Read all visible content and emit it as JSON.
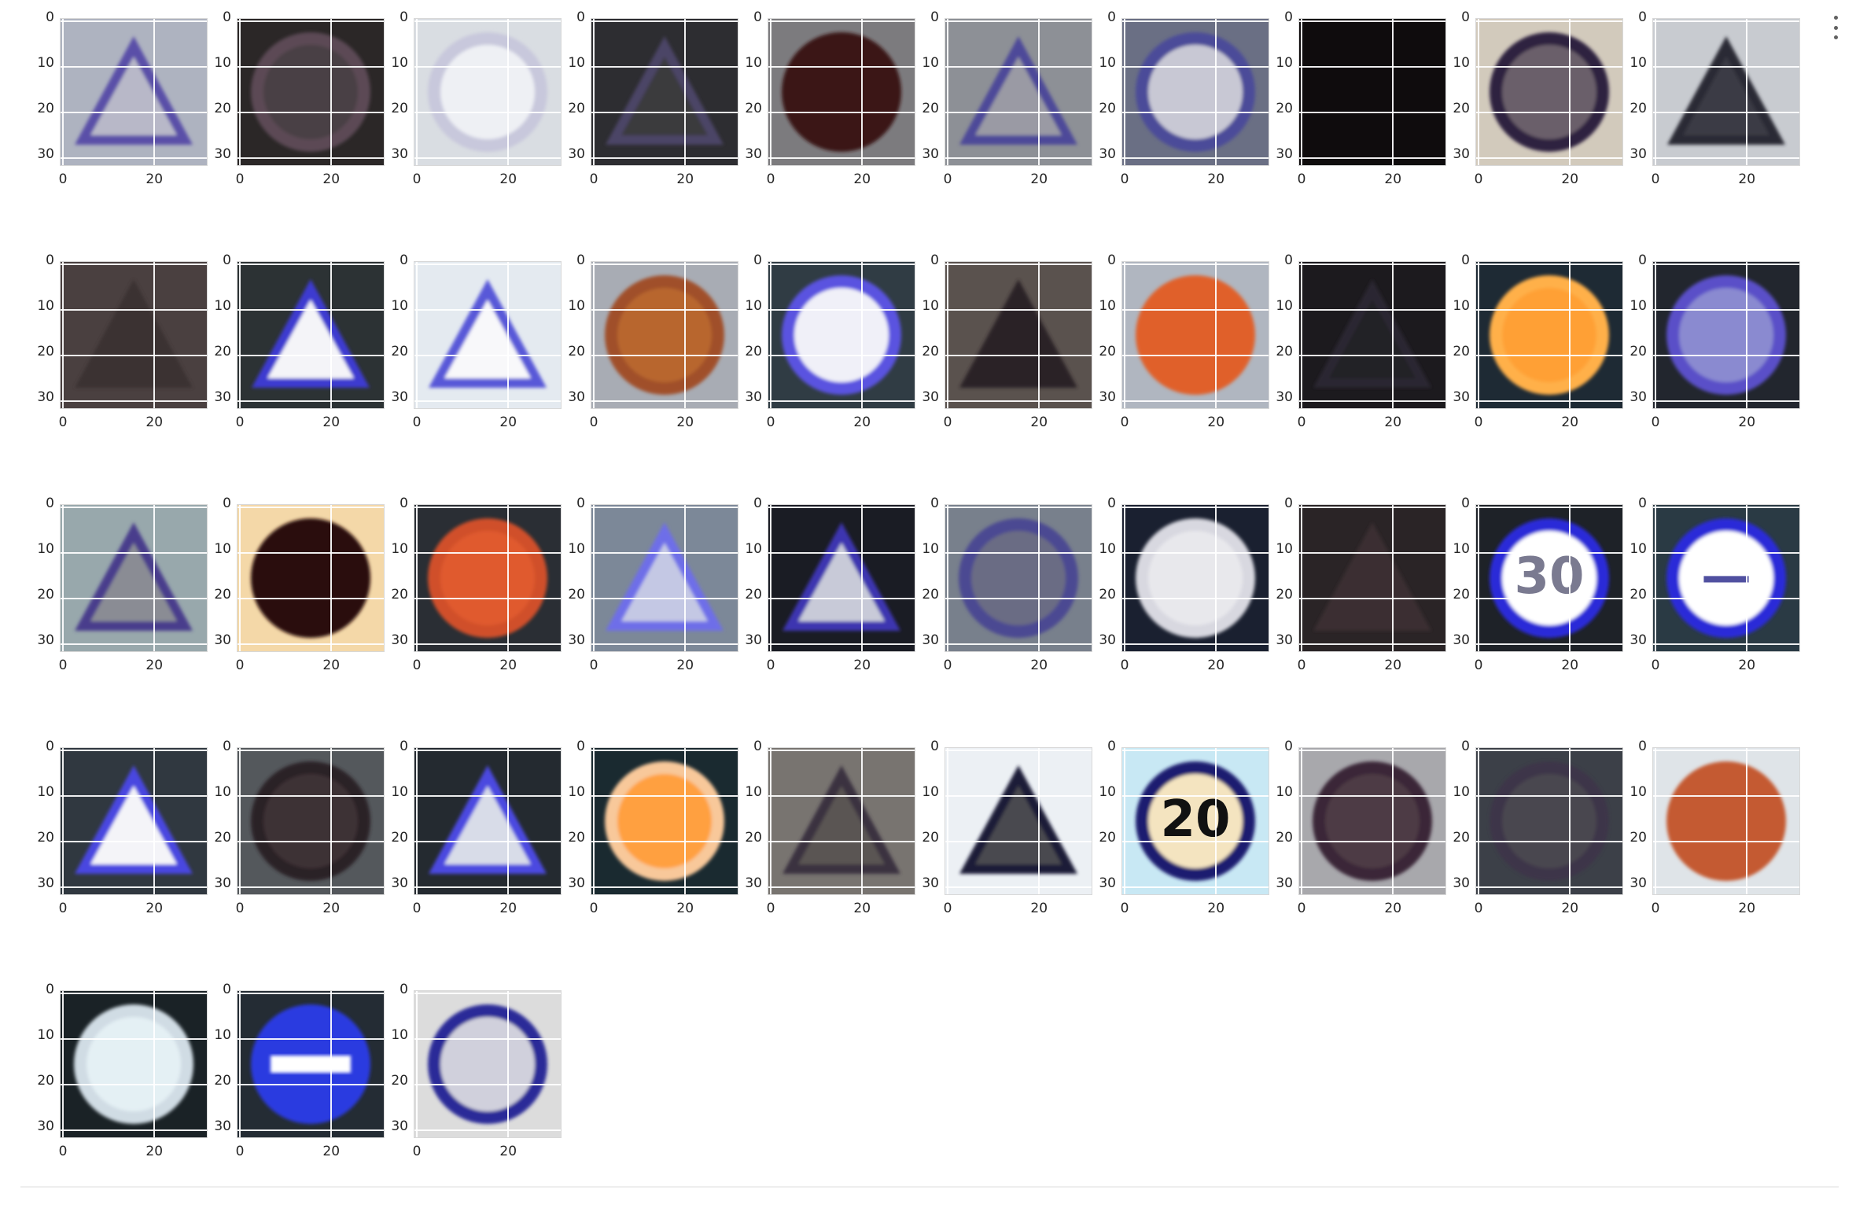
{
  "figure": {
    "ytick_labels": [
      "0",
      "10",
      "20",
      "30"
    ],
    "ytick_values": [
      0,
      10,
      20,
      30
    ],
    "xtick_labels": [
      "0",
      "20"
    ],
    "xtick_values": [
      0,
      20
    ],
    "pixel_extent": 32
  },
  "images": [
    {
      "shape": "triangle",
      "bg": "#aeb3c0",
      "fill": "#b8b8c8",
      "ring": "#5a4fa8",
      "symbol": "",
      "sym_color": "#555"
    },
    {
      "shape": "circle",
      "bg": "#2b2727",
      "fill": "#4a3f44",
      "ring": "#5b4a55",
      "symbol": "",
      "sym_color": "#555"
    },
    {
      "shape": "circle",
      "bg": "#d9dde2",
      "fill": "#eef0f4",
      "ring": "#c8c8dc",
      "symbol": "",
      "sym_color": "#5a8a5a"
    },
    {
      "shape": "triangle",
      "bg": "#2d2d31",
      "fill": "#3a3a3e",
      "ring": "#4c4566",
      "symbol": "",
      "sym_color": "#444"
    },
    {
      "shape": "circle",
      "bg": "#7c7b7e",
      "fill": "#3a1716",
      "ring": "#3a1716",
      "symbol": "",
      "sym_color": "#3a1716"
    },
    {
      "shape": "triangle",
      "bg": "#8d9096",
      "fill": "#9a9aa4",
      "ring": "#4e4a99",
      "symbol": "",
      "sym_color": "#555"
    },
    {
      "shape": "circle",
      "bg": "#6a6f84",
      "fill": "#c8c8d4",
      "ring": "#4b4c99",
      "symbol": "",
      "sym_color": "#444"
    },
    {
      "shape": "none",
      "bg": "#0f0c0d",
      "fill": "#141012",
      "ring": "#141012",
      "symbol": "",
      "sym_color": "#141012"
    },
    {
      "shape": "circle",
      "bg": "#d2cabc",
      "fill": "#6a5f6a",
      "ring": "#2e2140",
      "symbol": "",
      "sym_color": "#333"
    },
    {
      "shape": "triangle",
      "bg": "#c8cbd0",
      "fill": "#3a3a44",
      "ring": "#2a2a36",
      "symbol": "",
      "sym_color": "#333"
    },
    {
      "shape": "triangle",
      "bg": "#4a4040",
      "fill": "#3a3232",
      "ring": "#3a3232",
      "symbol": "",
      "sym_color": "#333"
    },
    {
      "shape": "triangle",
      "bg": "#2c3234",
      "fill": "#f4f4f8",
      "ring": "#3e3ad0",
      "symbol": "",
      "sym_color": "#333"
    },
    {
      "shape": "triangle",
      "bg": "#e4eaf0",
      "fill": "#f8f8fa",
      "ring": "#5858d8",
      "symbol": "",
      "sym_color": "#666"
    },
    {
      "shape": "circle",
      "bg": "#a8acb4",
      "fill": "#b8662e",
      "ring": "#a04f2a",
      "symbol": "",
      "sym_color": "#666"
    },
    {
      "shape": "circle",
      "bg": "#303c44",
      "fill": "#f0f0f8",
      "ring": "#5a52e0",
      "symbol": "",
      "sym_color": "#9a9ac0"
    },
    {
      "shape": "triangle",
      "bg": "#5a524e",
      "fill": "#2a2426",
      "ring": "#2a2426",
      "symbol": "",
      "sym_color": "#333"
    },
    {
      "shape": "circle",
      "bg": "#b0b6c0",
      "fill": "#e0602a",
      "ring": "#e0602a",
      "symbol": "",
      "sym_color": "#f0e0d0"
    },
    {
      "shape": "triangle",
      "bg": "#1c1a1e",
      "fill": "#232026",
      "ring": "#2a2630",
      "symbol": "",
      "sym_color": "#333"
    },
    {
      "shape": "circle",
      "bg": "#1e2a34",
      "fill": "#ffa036",
      "ring": "#ffb04a",
      "symbol": "",
      "sym_color": "#fff0d0"
    },
    {
      "shape": "circle",
      "bg": "#22262e",
      "fill": "#8a8ad0",
      "ring": "#5a50c8",
      "symbol": "",
      "sym_color": "#aaa"
    },
    {
      "shape": "triangle",
      "bg": "#98a8ac",
      "fill": "#8a8c94",
      "ring": "#4a3c8c",
      "symbol": "",
      "sym_color": "#555"
    },
    {
      "shape": "circle",
      "bg": "#f4d8a8",
      "fill": "#2a0c08",
      "ring": "#2a0c08",
      "symbol": "",
      "sym_color": "#5a3a30"
    },
    {
      "shape": "circle",
      "bg": "#2a2e34",
      "fill": "#e05a2e",
      "ring": "#d0502a",
      "symbol": "",
      "sym_color": "#f0d0c0"
    },
    {
      "shape": "triangle",
      "bg": "#7c8898",
      "fill": "#c4c8e4",
      "ring": "#6e6ee8",
      "symbol": "",
      "sym_color": "#777"
    },
    {
      "shape": "triangle",
      "bg": "#1a1c24",
      "fill": "#c8cad8",
      "ring": "#3c36b0",
      "symbol": "",
      "sym_color": "#333"
    },
    {
      "shape": "circle",
      "bg": "#78808c",
      "fill": "#6a6c84",
      "ring": "#4c4a92",
      "symbol": "",
      "sym_color": "#555"
    },
    {
      "shape": "circle",
      "bg": "#1a2030",
      "fill": "#e8e8ec",
      "ring": "#d8d8e0",
      "symbol": "",
      "sym_color": "#444"
    },
    {
      "shape": "triangle",
      "bg": "#2a2426",
      "fill": "#3a2e30",
      "ring": "#3a2e30",
      "symbol": "",
      "sym_color": "#333"
    },
    {
      "shape": "circle",
      "bg": "#1e2228",
      "fill": "#ffffff",
      "ring": "#2a2ad8",
      "symbol": "30",
      "sym_color": "#7a7a90"
    },
    {
      "shape": "circle",
      "bg": "#2a3a44",
      "fill": "#ffffff",
      "ring": "#2a2ad8",
      "symbol": "—",
      "sym_color": "#5050a0"
    },
    {
      "shape": "triangle",
      "bg": "#303840",
      "fill": "#f4f4f8",
      "ring": "#4a46e0",
      "symbol": "",
      "sym_color": "#444"
    },
    {
      "shape": "circle",
      "bg": "#54585c",
      "fill": "#3e3234",
      "ring": "#2a2026",
      "symbol": "",
      "sym_color": "#333"
    },
    {
      "shape": "triangle",
      "bg": "#242a30",
      "fill": "#d8dce8",
      "ring": "#4c4ae0",
      "symbol": "",
      "sym_color": "#4a6a8a"
    },
    {
      "shape": "circle",
      "bg": "#1a2a30",
      "fill": "#ffa040",
      "ring": "#f8c89a",
      "symbol": "",
      "sym_color": "#fff0e0"
    },
    {
      "shape": "triangle",
      "bg": "#787470",
      "fill": "#5a5452",
      "ring": "#3a3240",
      "symbol": "",
      "sym_color": "#333"
    },
    {
      "shape": "triangle",
      "bg": "#ecf0f4",
      "fill": "#4a4850",
      "ring": "#1e1e38",
      "symbol": "",
      "sym_color": "#333"
    },
    {
      "shape": "circle",
      "bg": "#c8e8f4",
      "fill": "#f4e4c0",
      "ring": "#1a1a70",
      "symbol": "20",
      "sym_color": "#111111"
    },
    {
      "shape": "circle",
      "bg": "#a8a8ac",
      "fill": "#4e3a44",
      "ring": "#3a2838",
      "symbol": "",
      "sym_color": "#333"
    },
    {
      "shape": "circle",
      "bg": "#3c4048",
      "fill": "#4a4650",
      "ring": "#3c3648",
      "symbol": "",
      "sym_color": "#333"
    },
    {
      "shape": "circle",
      "bg": "#dfe4e8",
      "fill": "#c45a30",
      "ring": "#c45a30",
      "symbol": "",
      "sym_color": "#f0d8c8"
    },
    {
      "shape": "circle",
      "bg": "#1a2226",
      "fill": "#e4f0f4",
      "ring": "#d0dce4",
      "symbol": "",
      "sym_color": "#5a8aaa"
    },
    {
      "shape": "circle",
      "bg": "#242c34",
      "fill": "#2a3ae0",
      "ring": "#2a3ae0",
      "symbol": "bar",
      "sym_color": "#ffffff"
    },
    {
      "shape": "circle",
      "bg": "#dcdcdc",
      "fill": "#d0d0dc",
      "ring": "#2a2a98",
      "symbol": "",
      "sym_color": "#6a6a80"
    }
  ]
}
